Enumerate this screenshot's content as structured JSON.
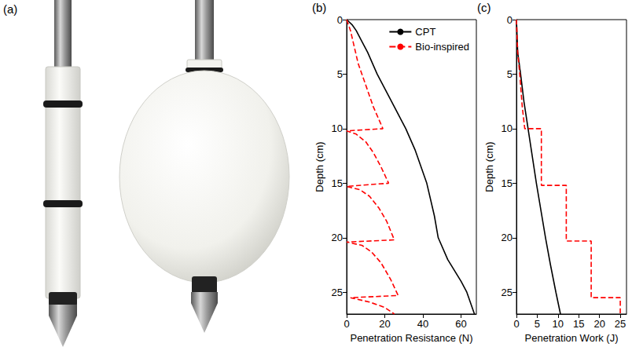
{
  "photo": {
    "label": "(a)"
  },
  "chart_data": [
    {
      "type": "line",
      "label": "(b)",
      "x_label": "Penetration Resistance (N)",
      "y_label": "Depth (cm)",
      "xlim": [
        0,
        68
      ],
      "xticks": [
        0,
        20,
        40,
        60
      ],
      "ylim": [
        0,
        27
      ],
      "yticks": [
        0,
        5,
        10,
        15,
        20,
        25
      ],
      "legend": "upper right",
      "series": [
        {
          "name": "CPT",
          "color": "#000000",
          "line_style": "solid",
          "x": [
            0,
            3,
            5,
            8,
            11,
            16,
            22,
            31,
            36,
            42,
            46,
            48,
            53,
            60,
            63,
            67
          ],
          "y": [
            0,
            0.5,
            1,
            2,
            3,
            5,
            7,
            10,
            12,
            15,
            18,
            20,
            22,
            24,
            25,
            27
          ]
        },
        {
          "name": "Bio-inspired",
          "color": "#ff0000",
          "line_style": "dashed",
          "x": [
            0,
            2,
            4,
            6,
            8,
            11,
            14,
            19,
            0,
            5,
            10,
            14,
            18,
            22,
            0,
            7,
            12,
            17,
            21,
            25,
            0,
            8,
            13,
            18,
            23,
            27,
            2,
            12,
            20,
            25
          ],
          "y": [
            0,
            1,
            2.5,
            4,
            5,
            6.5,
            8,
            10,
            10.2,
            10.5,
            11.2,
            12.2,
            13.5,
            15,
            15.3,
            15.6,
            16.2,
            17.3,
            18.5,
            20.2,
            20.4,
            20.7,
            21.3,
            22.3,
            23.8,
            25.3,
            25.5,
            25.9,
            26.4,
            27
          ]
        }
      ]
    },
    {
      "type": "line",
      "label": "(c)",
      "x_label": "Penetration Work (J)",
      "y_label": "Depth (cm)",
      "xlim": [
        0,
        26.5
      ],
      "xticks": [
        0,
        5,
        10,
        15,
        20,
        25
      ],
      "ylim": [
        0,
        27
      ],
      "yticks": [
        0,
        5,
        10,
        15,
        20,
        25
      ],
      "series": [
        {
          "name": "CPT",
          "color": "#000000",
          "line_style": "solid",
          "x": [
            0,
            0.3,
            1,
            1.8,
            2.8,
            3.8,
            4.8,
            5.9,
            7,
            8.2,
            9.5,
            10.6
          ],
          "y": [
            0,
            3,
            5,
            7.5,
            10,
            12.5,
            15,
            17.5,
            20,
            22.5,
            25,
            27
          ]
        },
        {
          "name": "Bio-inspired",
          "color": "#ff0000",
          "line_style": "dashed",
          "x": [
            0,
            0.3,
            0.8,
            1.4,
            2,
            6,
            6,
            12,
            12,
            18,
            18,
            25,
            25
          ],
          "y": [
            0,
            3,
            5,
            8,
            10,
            10,
            15.2,
            15.2,
            20.3,
            20.3,
            25.5,
            25.5,
            27
          ]
        }
      ]
    }
  ]
}
